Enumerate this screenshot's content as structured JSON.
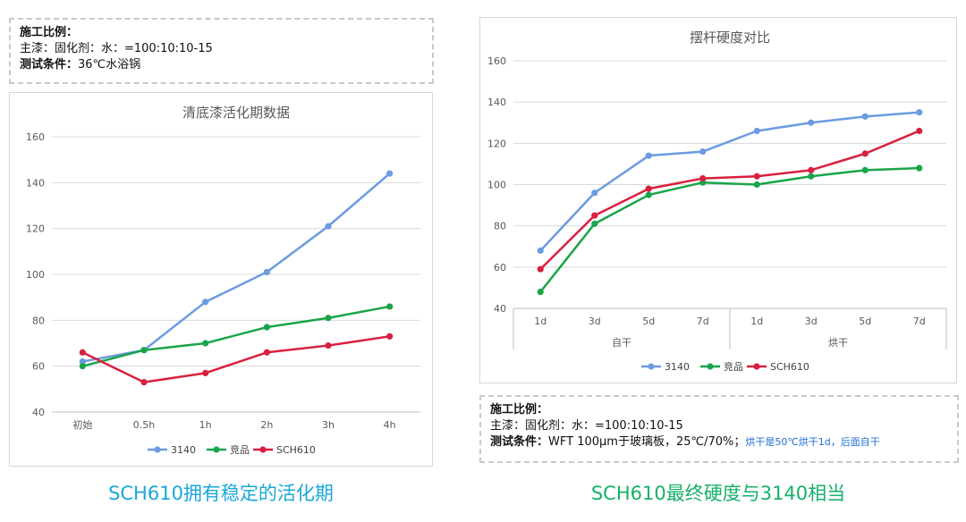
{
  "left_note": {
    "ratio_title": "施工比例：",
    "ratio_value": "主漆：固化剂：水：=100:10:10-15",
    "cond_label": "测试条件：",
    "cond_value": "36℃水浴锅"
  },
  "right_note": {
    "ratio_title": "施工比例：",
    "ratio_value": "主漆：固化剂：水：=100:10:10-15",
    "cond_label": "测试条件：",
    "cond_value": "WFT 100μm于玻璃板，25℃/70%；",
    "cond_note": "烘干是50℃烘干1d，后面自干"
  },
  "captions": {
    "left": "SCH610拥有稳定的活化期",
    "right": "SCH610最终硬度与3140相当"
  },
  "colors": {
    "s3140": "#6b9be0",
    "jingpin": "#19a54a",
    "sch610": "#d8203f",
    "grid": "#d9d9d9"
  },
  "chart_data": [
    {
      "type": "line",
      "title": "清底漆活化期数据",
      "categories": [
        "初始",
        "0.5h",
        "1h",
        "2h",
        "3h",
        "4h"
      ],
      "ylim": [
        40,
        160
      ],
      "yticks": [
        40,
        60,
        80,
        100,
        120,
        140,
        160
      ],
      "series": [
        {
          "name": "3140",
          "values": [
            62,
            67,
            88,
            101,
            121,
            144
          ]
        },
        {
          "name": "竞品",
          "values": [
            60,
            67,
            70,
            77,
            81,
            86
          ]
        },
        {
          "name": "SCH610",
          "values": [
            66,
            53,
            57,
            66,
            69,
            73
          ]
        }
      ]
    },
    {
      "type": "line",
      "title": "摆杆硬度对比",
      "categories": [
        "1d",
        "3d",
        "5d",
        "7d",
        "1d",
        "3d",
        "5d",
        "7d"
      ],
      "groups": [
        {
          "label": "自干",
          "span": 4
        },
        {
          "label": "烘干",
          "span": 4
        }
      ],
      "ylim": [
        40,
        160
      ],
      "yticks": [
        40,
        60,
        80,
        100,
        120,
        140,
        160
      ],
      "series": [
        {
          "name": "3140",
          "values": [
            68,
            96,
            114,
            116,
            126,
            130,
            133,
            135
          ]
        },
        {
          "name": "竞品",
          "values": [
            48,
            81,
            95,
            101,
            100,
            104,
            107,
            108
          ]
        },
        {
          "name": "SCH610",
          "values": [
            59,
            85,
            98,
            103,
            104,
            107,
            115,
            126
          ]
        }
      ]
    }
  ]
}
